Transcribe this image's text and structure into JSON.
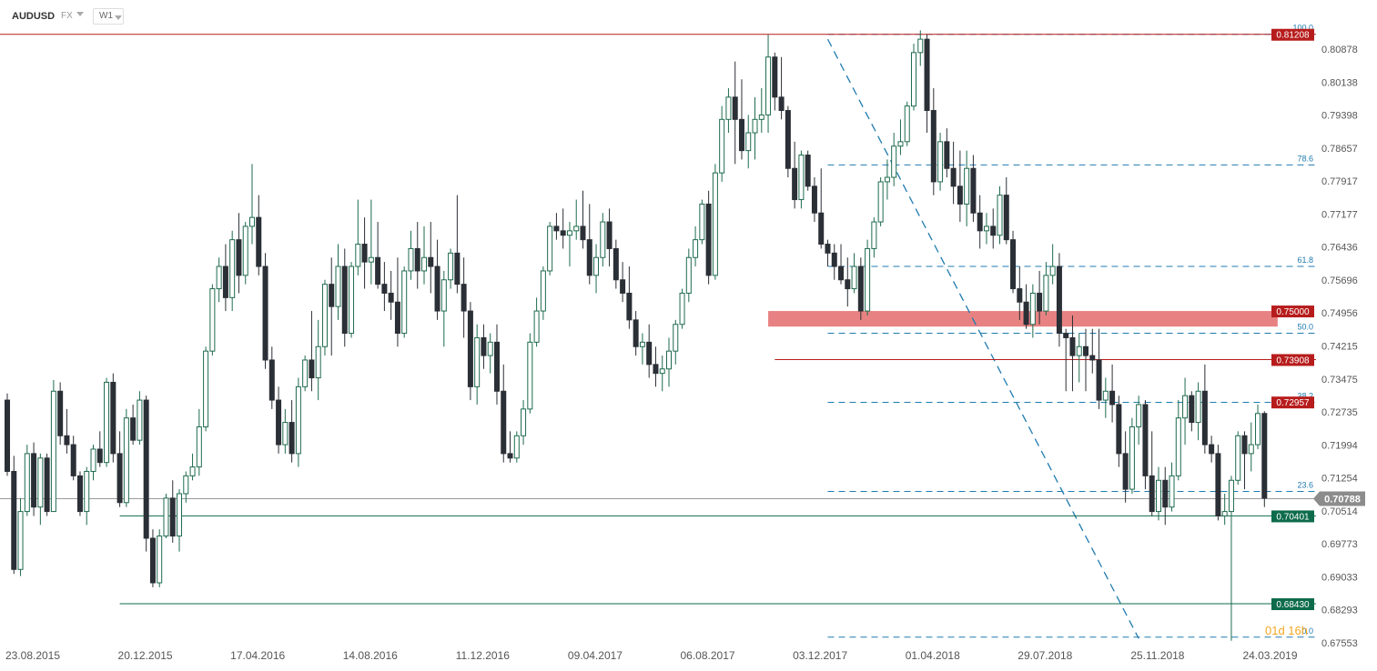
{
  "header": {
    "symbol": "AUDUSD",
    "market": "FX",
    "timeframe": "W1"
  },
  "chart_data": {
    "type": "candlestick",
    "title": "AUDUSD",
    "ylim": [
      0.6755,
      0.8155
    ],
    "y_ticks": [
      "0.80878",
      "0.80138",
      "0.79398",
      "0.78657",
      "0.77917",
      "0.77177",
      "0.76436",
      "0.75696",
      "0.74956",
      "0.74215",
      "0.73475",
      "0.72735",
      "0.71994",
      "0.71254",
      "0.70514",
      "0.69773",
      "0.69033",
      "0.68293",
      "0.67553"
    ],
    "x_ticks": [
      {
        "label": "23.08.2015",
        "i": 0
      },
      {
        "label": "20.12.2015",
        "i": 17
      },
      {
        "label": "17.04.2016",
        "i": 34
      },
      {
        "label": "14.08.2016",
        "i": 51
      },
      {
        "label": "11.12.2016",
        "i": 68
      },
      {
        "label": "09.04.2017",
        "i": 85
      },
      {
        "label": "06.08.2017",
        "i": 102
      },
      {
        "label": "03.12.2017",
        "i": 119
      },
      {
        "label": "01.04.2018",
        "i": 136
      },
      {
        "label": "29.07.2018",
        "i": 153
      },
      {
        "label": "25.11.2018",
        "i": 170
      },
      {
        "label": "24.03.2019",
        "i": 187
      }
    ],
    "candles": [
      [
        0.73,
        0.7315,
        0.713,
        0.714
      ],
      [
        0.714,
        0.7175,
        0.691,
        0.692
      ],
      [
        0.692,
        0.708,
        0.6905,
        0.705
      ],
      [
        0.705,
        0.72,
        0.704,
        0.718
      ],
      [
        0.718,
        0.7205,
        0.704,
        0.706
      ],
      [
        0.706,
        0.718,
        0.702,
        0.717
      ],
      [
        0.717,
        0.718,
        0.704,
        0.705
      ],
      [
        0.705,
        0.7345,
        0.705,
        0.732
      ],
      [
        0.732,
        0.734,
        0.72,
        0.722
      ],
      [
        0.722,
        0.728,
        0.718,
        0.72
      ],
      [
        0.72,
        0.722,
        0.712,
        0.713
      ],
      [
        0.713,
        0.714,
        0.704,
        0.705
      ],
      [
        0.705,
        0.715,
        0.702,
        0.714
      ],
      [
        0.714,
        0.72,
        0.712,
        0.719
      ],
      [
        0.719,
        0.723,
        0.715,
        0.716
      ],
      [
        0.716,
        0.735,
        0.715,
        0.734
      ],
      [
        0.734,
        0.736,
        0.716,
        0.718
      ],
      [
        0.718,
        0.723,
        0.706,
        0.707
      ],
      [
        0.707,
        0.728,
        0.706,
        0.726
      ],
      [
        0.726,
        0.729,
        0.72,
        0.721
      ],
      [
        0.721,
        0.732,
        0.72,
        0.73
      ],
      [
        0.73,
        0.731,
        0.696,
        0.699
      ],
      [
        0.699,
        0.701,
        0.688,
        0.689
      ],
      [
        0.689,
        0.701,
        0.688,
        0.6995
      ],
      [
        0.6995,
        0.709,
        0.699,
        0.708
      ],
      [
        0.708,
        0.712,
        0.698,
        0.6995
      ],
      [
        0.6995,
        0.71,
        0.696,
        0.709
      ],
      [
        0.709,
        0.714,
        0.707,
        0.713
      ],
      [
        0.713,
        0.718,
        0.712,
        0.715
      ],
      [
        0.715,
        0.728,
        0.713,
        0.724
      ],
      [
        0.724,
        0.742,
        0.723,
        0.741
      ],
      [
        0.741,
        0.756,
        0.74,
        0.755
      ],
      [
        0.755,
        0.762,
        0.752,
        0.76
      ],
      [
        0.76,
        0.765,
        0.75,
        0.753
      ],
      [
        0.753,
        0.768,
        0.75,
        0.766
      ],
      [
        0.766,
        0.772,
        0.754,
        0.758
      ],
      [
        0.758,
        0.77,
        0.756,
        0.769
      ],
      [
        0.769,
        0.783,
        0.765,
        0.771
      ],
      [
        0.771,
        0.776,
        0.758,
        0.76
      ],
      [
        0.76,
        0.763,
        0.737,
        0.739
      ],
      [
        0.739,
        0.742,
        0.728,
        0.73
      ],
      [
        0.73,
        0.733,
        0.718,
        0.72
      ],
      [
        0.72,
        0.728,
        0.718,
        0.725
      ],
      [
        0.725,
        0.73,
        0.716,
        0.718
      ],
      [
        0.718,
        0.735,
        0.715,
        0.733
      ],
      [
        0.733,
        0.74,
        0.732,
        0.739
      ],
      [
        0.739,
        0.75,
        0.732,
        0.735
      ],
      [
        0.735,
        0.748,
        0.73,
        0.742
      ],
      [
        0.742,
        0.757,
        0.74,
        0.756
      ],
      [
        0.756,
        0.762,
        0.74,
        0.751
      ],
      [
        0.751,
        0.765,
        0.748,
        0.76
      ],
      [
        0.76,
        0.764,
        0.742,
        0.745
      ],
      [
        0.745,
        0.761,
        0.744,
        0.76
      ],
      [
        0.76,
        0.775,
        0.758,
        0.765
      ],
      [
        0.765,
        0.771,
        0.755,
        0.761
      ],
      [
        0.761,
        0.775,
        0.756,
        0.762
      ],
      [
        0.762,
        0.77,
        0.755,
        0.756
      ],
      [
        0.756,
        0.761,
        0.75,
        0.754
      ],
      [
        0.754,
        0.759,
        0.748,
        0.752
      ],
      [
        0.752,
        0.762,
        0.742,
        0.745
      ],
      [
        0.745,
        0.76,
        0.744,
        0.759
      ],
      [
        0.759,
        0.768,
        0.757,
        0.764
      ],
      [
        0.764,
        0.77,
        0.755,
        0.759
      ],
      [
        0.759,
        0.769,
        0.756,
        0.762
      ],
      [
        0.762,
        0.77,
        0.754,
        0.76
      ],
      [
        0.76,
        0.766,
        0.748,
        0.75
      ],
      [
        0.75,
        0.759,
        0.742,
        0.757
      ],
      [
        0.757,
        0.764,
        0.755,
        0.763
      ],
      [
        0.763,
        0.776,
        0.754,
        0.756
      ],
      [
        0.756,
        0.762,
        0.744,
        0.75
      ],
      [
        0.75,
        0.752,
        0.73,
        0.733
      ],
      [
        0.733,
        0.747,
        0.729,
        0.744
      ],
      [
        0.744,
        0.747,
        0.737,
        0.74
      ],
      [
        0.74,
        0.745,
        0.736,
        0.743
      ],
      [
        0.743,
        0.747,
        0.729,
        0.732
      ],
      [
        0.732,
        0.738,
        0.716,
        0.718
      ],
      [
        0.718,
        0.723,
        0.716,
        0.717
      ],
      [
        0.717,
        0.723,
        0.716,
        0.722
      ],
      [
        0.722,
        0.73,
        0.72,
        0.728
      ],
      [
        0.728,
        0.745,
        0.727,
        0.743
      ],
      [
        0.743,
        0.753,
        0.742,
        0.75
      ],
      [
        0.75,
        0.76,
        0.748,
        0.759
      ],
      [
        0.759,
        0.77,
        0.758,
        0.769
      ],
      [
        0.769,
        0.772,
        0.766,
        0.768
      ],
      [
        0.768,
        0.773,
        0.764,
        0.767
      ],
      [
        0.767,
        0.77,
        0.76,
        0.768
      ],
      [
        0.768,
        0.775,
        0.766,
        0.769
      ],
      [
        0.769,
        0.777,
        0.764,
        0.766
      ],
      [
        0.766,
        0.774,
        0.756,
        0.758
      ],
      [
        0.758,
        0.765,
        0.754,
        0.762
      ],
      [
        0.762,
        0.772,
        0.76,
        0.77
      ],
      [
        0.77,
        0.773,
        0.76,
        0.764
      ],
      [
        0.764,
        0.766,
        0.755,
        0.757
      ],
      [
        0.757,
        0.761,
        0.752,
        0.754
      ],
      [
        0.754,
        0.76,
        0.746,
        0.748
      ],
      [
        0.748,
        0.75,
        0.74,
        0.742
      ],
      [
        0.742,
        0.745,
        0.738,
        0.743
      ],
      [
        0.743,
        0.747,
        0.735,
        0.738
      ],
      [
        0.738,
        0.742,
        0.733,
        0.736
      ],
      [
        0.736,
        0.74,
        0.732,
        0.737
      ],
      [
        0.737,
        0.744,
        0.733,
        0.741
      ],
      [
        0.741,
        0.748,
        0.738,
        0.747
      ],
      [
        0.747,
        0.755,
        0.746,
        0.754
      ],
      [
        0.754,
        0.764,
        0.752,
        0.762
      ],
      [
        0.762,
        0.769,
        0.76,
        0.766
      ],
      [
        0.766,
        0.775,
        0.765,
        0.774
      ],
      [
        0.774,
        0.777,
        0.756,
        0.758
      ],
      [
        0.758,
        0.783,
        0.757,
        0.781
      ],
      [
        0.781,
        0.796,
        0.779,
        0.793
      ],
      [
        0.793,
        0.8,
        0.79,
        0.798
      ],
      [
        0.798,
        0.806,
        0.783,
        0.793
      ],
      [
        0.793,
        0.802,
        0.784,
        0.786
      ],
      [
        0.786,
        0.794,
        0.782,
        0.79
      ],
      [
        0.79,
        0.798,
        0.784,
        0.793
      ],
      [
        0.793,
        0.8,
        0.79,
        0.794
      ],
      [
        0.794,
        0.812,
        0.79,
        0.807
      ],
      [
        0.807,
        0.808,
        0.795,
        0.798
      ],
      [
        0.798,
        0.807,
        0.793,
        0.795
      ],
      [
        0.795,
        0.796,
        0.78,
        0.782
      ],
      [
        0.782,
        0.788,
        0.773,
        0.775
      ],
      [
        0.775,
        0.786,
        0.773,
        0.785
      ],
      [
        0.785,
        0.786,
        0.777,
        0.778
      ],
      [
        0.778,
        0.78,
        0.77,
        0.772
      ],
      [
        0.772,
        0.782,
        0.764,
        0.765
      ],
      [
        0.765,
        0.766,
        0.76,
        0.763
      ],
      [
        0.763,
        0.765,
        0.757,
        0.76
      ],
      [
        0.76,
        0.765,
        0.756,
        0.757
      ],
      [
        0.757,
        0.762,
        0.751,
        0.755
      ],
      [
        0.755,
        0.763,
        0.754,
        0.76
      ],
      [
        0.76,
        0.762,
        0.748,
        0.75
      ],
      [
        0.75,
        0.766,
        0.749,
        0.764
      ],
      [
        0.764,
        0.771,
        0.762,
        0.77
      ],
      [
        0.77,
        0.78,
        0.769,
        0.779
      ],
      [
        0.779,
        0.784,
        0.775,
        0.78
      ],
      [
        0.78,
        0.79,
        0.778,
        0.787
      ],
      [
        0.787,
        0.793,
        0.785,
        0.788
      ],
      [
        0.788,
        0.797,
        0.787,
        0.796
      ],
      [
        0.796,
        0.81,
        0.795,
        0.808
      ],
      [
        0.808,
        0.813,
        0.805,
        0.811
      ],
      [
        0.811,
        0.812,
        0.79,
        0.795
      ],
      [
        0.795,
        0.8,
        0.776,
        0.779
      ],
      [
        0.779,
        0.79,
        0.777,
        0.788
      ],
      [
        0.788,
        0.791,
        0.78,
        0.782
      ],
      [
        0.782,
        0.788,
        0.774,
        0.778
      ],
      [
        0.778,
        0.786,
        0.77,
        0.774
      ],
      [
        0.774,
        0.786,
        0.769,
        0.782
      ],
      [
        0.782,
        0.785,
        0.77,
        0.772
      ],
      [
        0.772,
        0.776,
        0.764,
        0.768
      ],
      [
        0.768,
        0.772,
        0.765,
        0.769
      ],
      [
        0.769,
        0.773,
        0.764,
        0.767
      ],
      [
        0.767,
        0.778,
        0.765,
        0.776
      ],
      [
        0.776,
        0.78,
        0.765,
        0.766
      ],
      [
        0.766,
        0.768,
        0.754,
        0.755
      ],
      [
        0.755,
        0.76,
        0.748,
        0.752
      ],
      [
        0.752,
        0.756,
        0.746,
        0.747
      ],
      [
        0.747,
        0.756,
        0.744,
        0.754
      ],
      [
        0.754,
        0.759,
        0.747,
        0.75
      ],
      [
        0.75,
        0.761,
        0.749,
        0.758
      ],
      [
        0.758,
        0.765,
        0.756,
        0.76
      ],
      [
        0.76,
        0.763,
        0.742,
        0.745
      ],
      [
        0.745,
        0.746,
        0.732,
        0.744
      ],
      [
        0.744,
        0.749,
        0.732,
        0.74
      ],
      [
        0.74,
        0.745,
        0.734,
        0.742
      ],
      [
        0.742,
        0.746,
        0.732,
        0.74
      ],
      [
        0.74,
        0.746,
        0.736,
        0.739
      ],
      [
        0.739,
        0.746,
        0.728,
        0.73
      ],
      [
        0.73,
        0.735,
        0.726,
        0.732
      ],
      [
        0.732,
        0.738,
        0.725,
        0.729
      ],
      [
        0.729,
        0.731,
        0.715,
        0.718
      ],
      [
        0.718,
        0.723,
        0.707,
        0.71
      ],
      [
        0.71,
        0.726,
        0.709,
        0.724
      ],
      [
        0.724,
        0.731,
        0.72,
        0.729
      ],
      [
        0.729,
        0.73,
        0.71,
        0.713
      ],
      [
        0.713,
        0.723,
        0.704,
        0.705
      ],
      [
        0.705,
        0.715,
        0.703,
        0.712
      ],
      [
        0.712,
        0.715,
        0.702,
        0.706
      ],
      [
        0.706,
        0.716,
        0.705,
        0.713
      ],
      [
        0.713,
        0.73,
        0.712,
        0.726
      ],
      [
        0.726,
        0.735,
        0.72,
        0.731
      ],
      [
        0.731,
        0.732,
        0.723,
        0.725
      ],
      [
        0.725,
        0.734,
        0.721,
        0.732
      ],
      [
        0.732,
        0.738,
        0.718,
        0.72
      ],
      [
        0.72,
        0.722,
        0.716,
        0.718
      ],
      [
        0.718,
        0.72,
        0.703,
        0.704
      ],
      [
        0.704,
        0.709,
        0.702,
        0.705
      ],
      [
        0.705,
        0.713,
        0.676,
        0.712
      ],
      [
        0.712,
        0.723,
        0.711,
        0.722
      ],
      [
        0.722,
        0.723,
        0.71,
        0.718
      ],
      [
        0.718,
        0.725,
        0.714,
        0.72
      ],
      [
        0.72,
        0.729,
        0.719,
        0.727
      ],
      [
        0.727,
        0.7275,
        0.706,
        0.708
      ]
    ],
    "hlines": [
      {
        "price": 0.8121,
        "label": "0.81208",
        "color": "#b71c1c",
        "from_i": -10
      },
      {
        "price": 0.75,
        "label": "0.75000",
        "color": "#b71c1c",
        "from_i": null
      },
      {
        "price": 0.7391,
        "label": "0.73908",
        "color": "#b71c1c",
        "from_i": 116
      },
      {
        "price": 0.72957,
        "label": "0.72957",
        "color": "#b71c1c",
        "from_i": null
      },
      {
        "price": 0.70401,
        "label": "0.70401",
        "color": "#0d6b4b",
        "from_i": 17
      },
      {
        "price": 0.6843,
        "label": "0.68430",
        "color": "#0d6b4b",
        "from_i": 17
      }
    ],
    "current_price": {
      "price": 0.70788,
      "label": "0.70788",
      "color": "#8c8c8c"
    },
    "fib": {
      "color": "#1f7bb0",
      "from_i": 124,
      "levels": [
        {
          "price": 0.8121,
          "label": "100.0"
        },
        {
          "price": 0.7828,
          "label": "78.6"
        },
        {
          "price": 0.76,
          "label": "61.8"
        },
        {
          "price": 0.745,
          "label": "50.0"
        },
        {
          "price": 0.7295,
          "label": "38.2"
        },
        {
          "price": 0.7095,
          "label": "23.6"
        },
        {
          "price": 0.6768,
          "label": "0.0"
        }
      ]
    },
    "trendline": {
      "from": {
        "i": 124,
        "price": 0.811
      },
      "to": {
        "i": 171,
        "price": 0.6765
      },
      "color": "#1f7bb0"
    },
    "zone": {
      "from_i": 115,
      "to_i": 192,
      "top": 0.75,
      "bottom": 0.7465,
      "color": "#e05858"
    },
    "countdown": {
      "label": "01d 16h",
      "color": "#f5a623"
    },
    "colors": {
      "bull_fill": "#ffffff",
      "bull_stroke": "#1e6b4e",
      "bear_fill": "#2b2f36",
      "bear_stroke": "#2b2f36",
      "axis_text": "#555555"
    }
  }
}
